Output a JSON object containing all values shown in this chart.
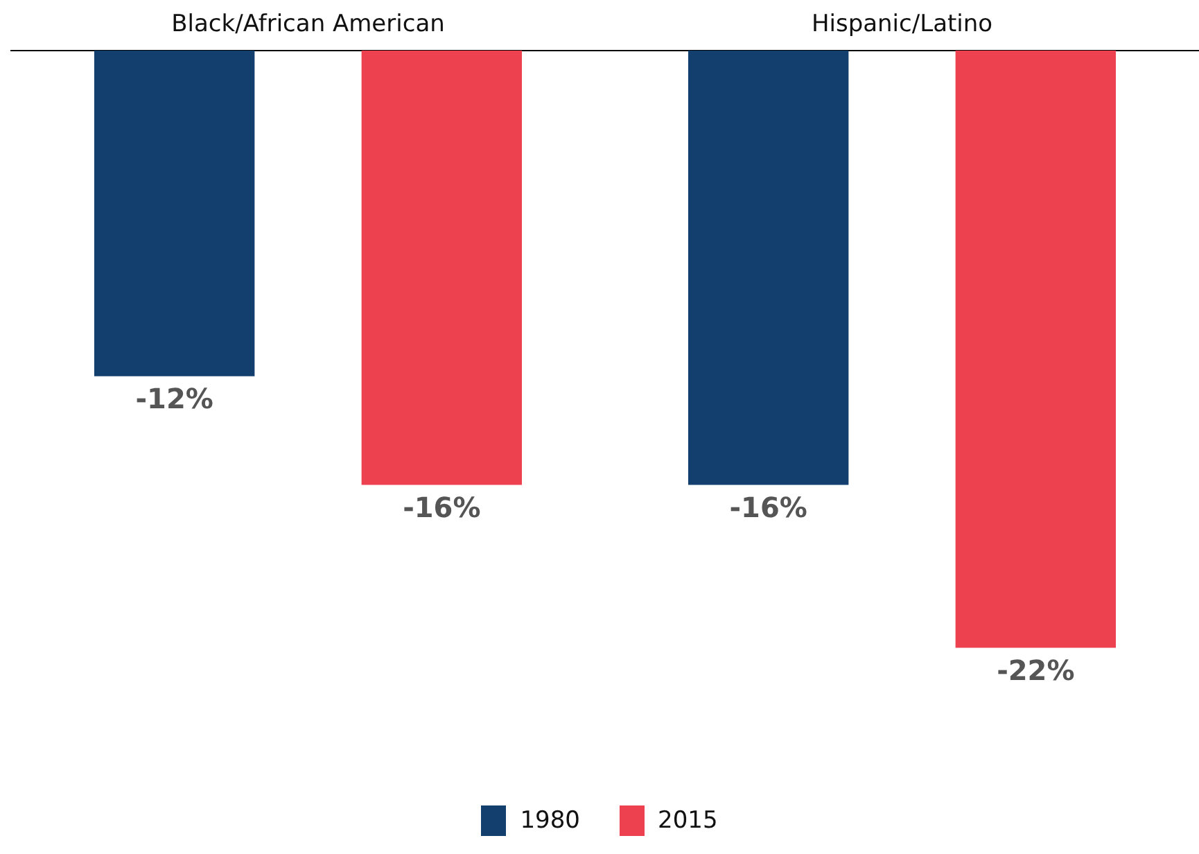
{
  "chart_data": {
    "type": "bar",
    "categories": [
      "Black/African American",
      "Hispanic/Latino"
    ],
    "series": [
      {
        "name": "1980",
        "color": "#133f6f",
        "values": [
          -12,
          -16
        ],
        "value_labels": [
          "-12%",
          "-16%"
        ]
      },
      {
        "name": "2015",
        "color": "#ee414f",
        "values": [
          -16,
          -22
        ],
        "value_labels": [
          "-16%",
          "-22%"
        ]
      }
    ],
    "legend": "bottom"
  }
}
